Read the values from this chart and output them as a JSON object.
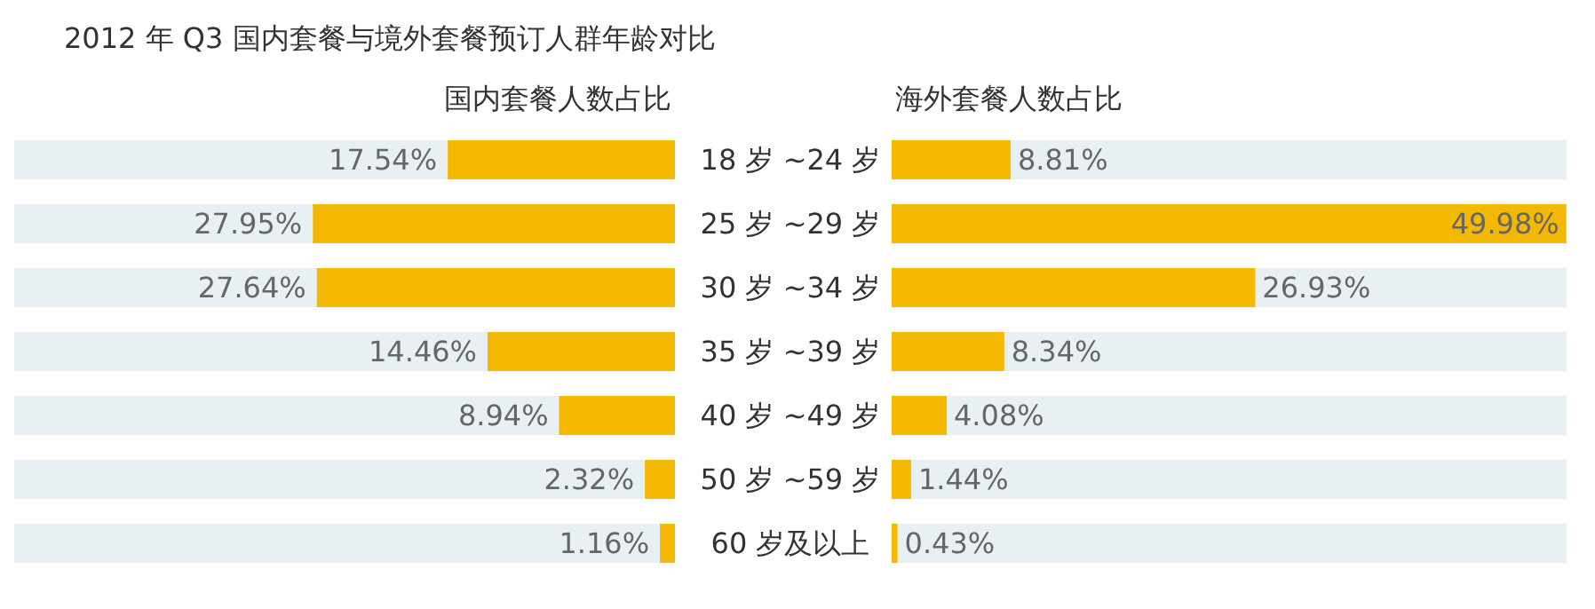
{
  "chart_data": [
    {
      "type": "bar",
      "orientation": "horizontal",
      "title": "2012 年 Q3 国内套餐与境外套餐预订人群年龄对比",
      "subtitle": "国内套餐人数占比",
      "categories": [
        "18 岁 ~24 岁",
        "25 岁 ~29 岁",
        "30 岁 ~34 岁",
        "35 岁 ~39 岁",
        "40 岁 ~49 岁",
        "50 岁 ~59 岁",
        "60 岁及以上"
      ],
      "values": [
        17.54,
        27.95,
        27.64,
        14.46,
        8.94,
        2.32,
        1.16
      ],
      "value_labels": [
        "17.54%",
        "27.95%",
        "27.64%",
        "14.46%",
        "8.94%",
        "2.32%",
        "1.16%"
      ],
      "color": "#f5b800",
      "xlim": [
        51,
        0
      ],
      "tick_labels": "y"
    },
    {
      "type": "bar",
      "orientation": "horizontal",
      "subtitle": "海外套餐人数占比",
      "categories": [
        null,
        null,
        null,
        null,
        null,
        null,
        null
      ],
      "values": [
        8.81,
        49.98,
        26.93,
        8.34,
        4.08,
        1.44,
        0.43
      ],
      "value_labels": [
        "8.81%",
        "49.98%",
        "26.93%",
        "8.34%",
        "4.08%",
        "1.44%",
        "0.43%"
      ],
      "color": "#f5b800",
      "xlim": [
        0,
        50
      ],
      "tick_labels": false
    }
  ]
}
